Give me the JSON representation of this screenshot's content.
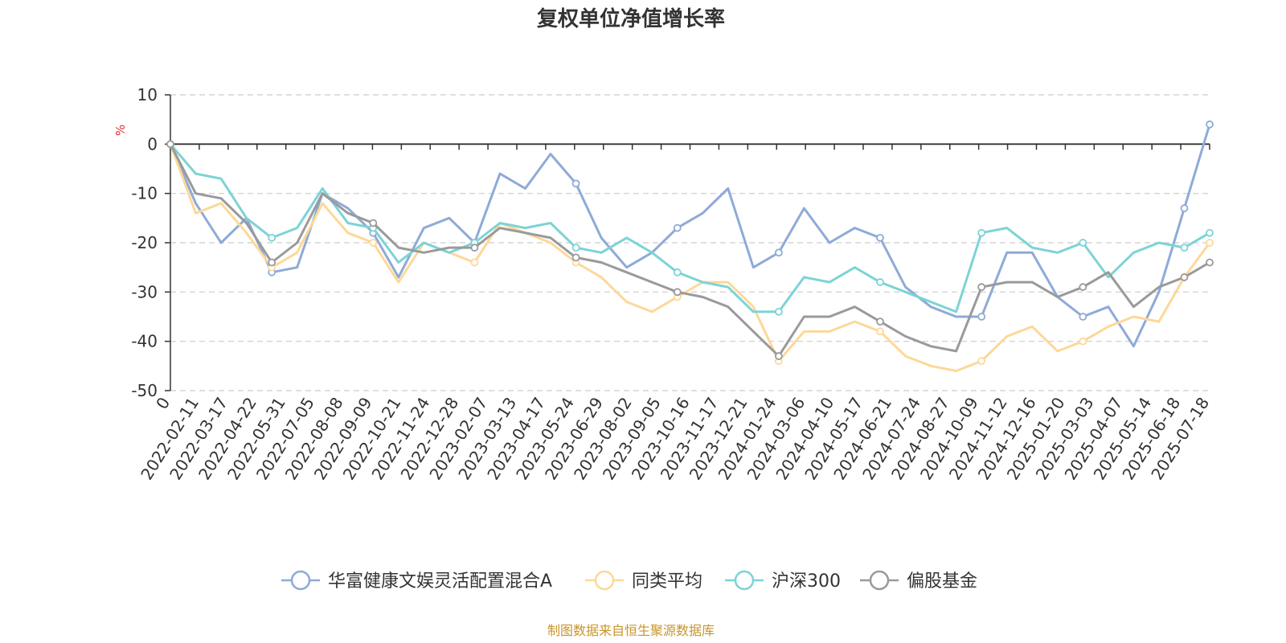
{
  "chart_data": {
    "type": "line",
    "title": "复权单位净值增长率",
    "ylabel": "%",
    "xlabel": "",
    "ylim": [
      -50,
      10
    ],
    "yticks": [
      10,
      0,
      -10,
      -20,
      -30,
      -40,
      -50
    ],
    "x_tick_labels": [
      "0",
      "2022-02-11",
      "2022-03-17",
      "2022-04-22",
      "2022-05-31",
      "2022-07-05",
      "2022-08-08",
      "2022-09-09",
      "2022-10-21",
      "2022-11-24",
      "2022-12-28",
      "2023-02-07",
      "2023-03-13",
      "2023-04-17",
      "2023-05-24",
      "2023-06-29",
      "2023-08-02",
      "2023-09-05",
      "2023-10-16",
      "2023-11-17",
      "2023-12-21",
      "2024-01-24",
      "2024-03-06",
      "2024-04-10",
      "2024-05-17",
      "2024-06-21",
      "2024-07-24",
      "2024-08-27",
      "2024-10-09",
      "2024-11-12",
      "2024-12-16",
      "2025-01-20",
      "2025-03-03",
      "2025-04-07",
      "2025-05-14",
      "2025-06-18",
      "2025-07-18"
    ],
    "grid": "horizontal-dashed",
    "legend_position": "bottom",
    "series": [
      {
        "name": "华富健康文娱灵活配置混合A",
        "color": "#8eaad8",
        "values": [
          0,
          -12,
          -20,
          -15,
          -26,
          -25,
          -10,
          -13,
          -18,
          -27,
          -17,
          -15,
          -20,
          -6,
          -9,
          -2,
          -8,
          -19,
          -25,
          -22,
          -17,
          -14,
          -9,
          -25,
          -22,
          -13,
          -20,
          -17,
          -19,
          -29,
          -33,
          -35,
          -35,
          -22,
          -22,
          -31,
          -35,
          -33,
          -41,
          -30,
          -13,
          4
        ]
      },
      {
        "name": "同类平均",
        "color": "#fdd898",
        "values": [
          0,
          -14,
          -12,
          -18,
          -25,
          -22,
          -12,
          -18,
          -20,
          -28,
          -20,
          -22,
          -24,
          -16,
          -18,
          -20,
          -24,
          -27,
          -32,
          -34,
          -31,
          -28,
          -28,
          -33,
          -44,
          -38,
          -38,
          -36,
          -38,
          -43,
          -45,
          -46,
          -44,
          -39,
          -37,
          -42,
          -40,
          -37,
          -35,
          -36,
          -27,
          -20
        ]
      },
      {
        "name": "沪深300",
        "color": "#7dd3d6",
        "values": [
          0,
          -6,
          -7,
          -15,
          -19,
          -17,
          -9,
          -16,
          -17,
          -24,
          -20,
          -22,
          -20,
          -16,
          -17,
          -16,
          -21,
          -22,
          -19,
          -22,
          -26,
          -28,
          -29,
          -34,
          -34,
          -27,
          -28,
          -25,
          -28,
          -30,
          -32,
          -34,
          -18,
          -17,
          -21,
          -22,
          -20,
          -27,
          -22,
          -20,
          -21,
          -18
        ]
      },
      {
        "name": "偏股基金",
        "color": "#9a9a9a",
        "values": [
          0,
          -10,
          -11,
          -16,
          -24,
          -20,
          -10,
          -14,
          -16,
          -21,
          -22,
          -21,
          -21,
          -17,
          -18,
          -19,
          -23,
          -24,
          -26,
          -28,
          -30,
          -31,
          -33,
          -38,
          -43,
          -35,
          -35,
          -33,
          -36,
          -39,
          -41,
          -42,
          -29,
          -28,
          -28,
          -31,
          -29,
          -26,
          -33,
          -29,
          -27,
          -24
        ]
      }
    ]
  },
  "source_note": "制图数据来自恒生聚源数据库"
}
